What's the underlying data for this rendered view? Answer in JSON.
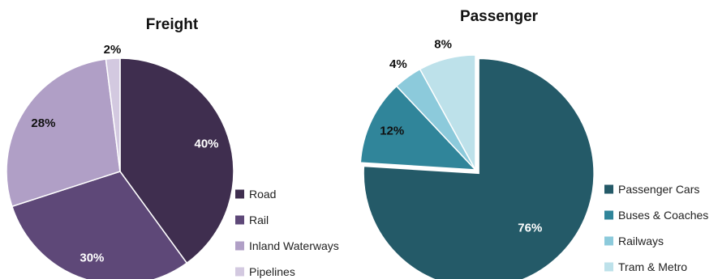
{
  "chart_data": [
    {
      "type": "pie",
      "title": "Freight",
      "legend_position": "right",
      "categories": [
        "Road",
        "Rail",
        "Inland Waterways",
        "Pipelines"
      ],
      "values": [
        40,
        30,
        28,
        2
      ],
      "labels": [
        "40%",
        "30%",
        "28%",
        "2%"
      ],
      "colors": [
        "#3f2e4f",
        "#5e4878",
        "#b09fc6",
        "#d3c9e0"
      ]
    },
    {
      "type": "pie",
      "title": "Passenger",
      "legend_position": "right",
      "categories": [
        "Passenger Cars",
        "Buses & Coaches",
        "Railways",
        "Tram & Metro"
      ],
      "values": [
        76,
        12,
        4,
        8
      ],
      "labels": [
        "76%",
        "12%",
        "4%",
        "8%"
      ],
      "colors": [
        "#245a68",
        "#30859a",
        "#8ccadb",
        "#bde1ea"
      ],
      "exploded": "Passenger Cars"
    }
  ]
}
